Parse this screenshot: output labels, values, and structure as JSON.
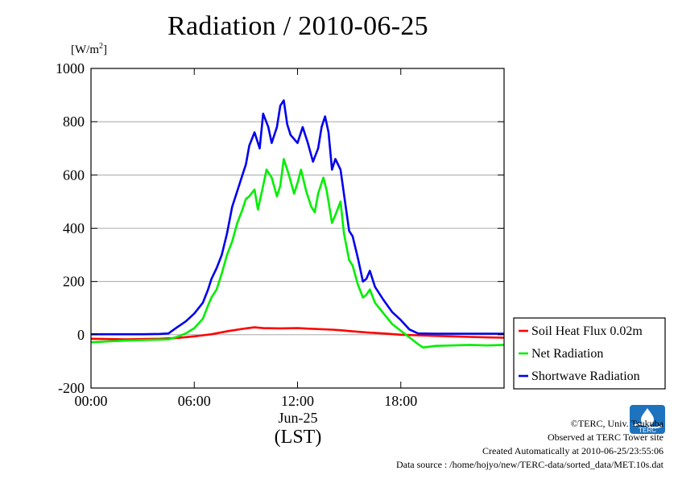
{
  "chart_data": {
    "type": "line",
    "title": "Radiation / 2010-06-25",
    "ylabel_main": "[W/m",
    "ylabel_sup": "2",
    "ylabel_end": "]",
    "ylim": [
      -200,
      1000
    ],
    "yticks": [
      -200,
      0,
      200,
      400,
      600,
      800,
      1000
    ],
    "ytick_labels": [
      "-200",
      "0",
      "200",
      "400",
      "600",
      "800",
      "1000"
    ],
    "xlim": [
      0,
      24
    ],
    "xticks": [
      0,
      6,
      12,
      18
    ],
    "xtick_labels": [
      "00:00",
      "06:00",
      "12:00",
      "18:00"
    ],
    "xlabel_category": "Jun-25",
    "xlabel_unit": "(LST)",
    "grid": true,
    "legend_position": "right-bottom",
    "series": [
      {
        "name": "Soil Heat Flux 0.02m",
        "color": "#ff0000",
        "points": [
          [
            0,
            -15
          ],
          [
            2,
            -17
          ],
          [
            4,
            -15
          ],
          [
            5,
            -12
          ],
          [
            6,
            -6
          ],
          [
            7,
            2
          ],
          [
            8,
            14
          ],
          [
            9,
            24
          ],
          [
            9.5,
            28
          ],
          [
            10,
            25
          ],
          [
            11,
            24
          ],
          [
            12,
            25
          ],
          [
            13,
            22
          ],
          [
            14,
            19
          ],
          [
            14.5,
            17
          ],
          [
            15,
            14
          ],
          [
            16,
            9
          ],
          [
            17,
            5
          ],
          [
            18,
            0
          ],
          [
            19,
            -2
          ],
          [
            20,
            -4
          ],
          [
            21,
            -6
          ],
          [
            22,
            -8
          ],
          [
            23,
            -10
          ],
          [
            24,
            -11
          ]
        ]
      },
      {
        "name": "Net Radiation",
        "color": "#00ee00",
        "points": [
          [
            0,
            -28
          ],
          [
            1,
            -25
          ],
          [
            2,
            -22
          ],
          [
            3,
            -20
          ],
          [
            4,
            -18
          ],
          [
            4.5,
            -17
          ],
          [
            5,
            -8
          ],
          [
            5.5,
            5
          ],
          [
            6,
            25
          ],
          [
            6.5,
            60
          ],
          [
            6.8,
            110
          ],
          [
            7,
            140
          ],
          [
            7.3,
            170
          ],
          [
            7.6,
            230
          ],
          [
            7.9,
            300
          ],
          [
            8.2,
            350
          ],
          [
            8.5,
            420
          ],
          [
            8.8,
            470
          ],
          [
            9,
            510
          ],
          [
            9.2,
            520
          ],
          [
            9.5,
            545
          ],
          [
            9.7,
            470
          ],
          [
            10,
            560
          ],
          [
            10.2,
            620
          ],
          [
            10.5,
            590
          ],
          [
            10.8,
            520
          ],
          [
            11,
            560
          ],
          [
            11.2,
            660
          ],
          [
            11.5,
            600
          ],
          [
            11.8,
            530
          ],
          [
            12,
            570
          ],
          [
            12.2,
            620
          ],
          [
            12.5,
            540
          ],
          [
            12.8,
            480
          ],
          [
            13,
            460
          ],
          [
            13.2,
            530
          ],
          [
            13.5,
            590
          ],
          [
            13.7,
            540
          ],
          [
            14,
            420
          ],
          [
            14.2,
            450
          ],
          [
            14.5,
            500
          ],
          [
            14.7,
            380
          ],
          [
            15,
            280
          ],
          [
            15.2,
            260
          ],
          [
            15.5,
            190
          ],
          [
            15.8,
            140
          ],
          [
            16,
            150
          ],
          [
            16.2,
            170
          ],
          [
            16.5,
            120
          ],
          [
            17,
            80
          ],
          [
            17.5,
            40
          ],
          [
            18,
            15
          ],
          [
            18.5,
            -10
          ],
          [
            19,
            -35
          ],
          [
            19.3,
            -48
          ],
          [
            20,
            -42
          ],
          [
            21,
            -40
          ],
          [
            22,
            -38
          ],
          [
            23,
            -40
          ],
          [
            24,
            -38
          ]
        ]
      },
      {
        "name": "Shortwave Radiation",
        "color": "#0000ee",
        "points": [
          [
            0,
            2
          ],
          [
            1,
            2
          ],
          [
            2,
            2
          ],
          [
            3,
            2
          ],
          [
            4,
            3
          ],
          [
            4.5,
            5
          ],
          [
            5,
            28
          ],
          [
            5.5,
            50
          ],
          [
            6,
            80
          ],
          [
            6.5,
            120
          ],
          [
            6.8,
            170
          ],
          [
            7,
            210
          ],
          [
            7.3,
            250
          ],
          [
            7.6,
            300
          ],
          [
            7.9,
            380
          ],
          [
            8.2,
            480
          ],
          [
            8.5,
            540
          ],
          [
            8.8,
            600
          ],
          [
            9,
            640
          ],
          [
            9.2,
            710
          ],
          [
            9.5,
            760
          ],
          [
            9.8,
            700
          ],
          [
            10,
            830
          ],
          [
            10.3,
            780
          ],
          [
            10.5,
            720
          ],
          [
            10.8,
            780
          ],
          [
            11,
            860
          ],
          [
            11.2,
            880
          ],
          [
            11.4,
            790
          ],
          [
            11.6,
            750
          ],
          [
            12,
            720
          ],
          [
            12.3,
            780
          ],
          [
            12.6,
            720
          ],
          [
            12.9,
            650
          ],
          [
            13.2,
            700
          ],
          [
            13.4,
            780
          ],
          [
            13.6,
            820
          ],
          [
            13.8,
            760
          ],
          [
            14,
            620
          ],
          [
            14.2,
            660
          ],
          [
            14.5,
            620
          ],
          [
            14.8,
            480
          ],
          [
            15,
            390
          ],
          [
            15.2,
            370
          ],
          [
            15.5,
            290
          ],
          [
            15.8,
            200
          ],
          [
            16,
            210
          ],
          [
            16.2,
            240
          ],
          [
            16.5,
            180
          ],
          [
            17,
            130
          ],
          [
            17.5,
            85
          ],
          [
            18,
            55
          ],
          [
            18.5,
            20
          ],
          [
            19,
            5
          ],
          [
            20,
            4
          ],
          [
            21,
            4
          ],
          [
            22,
            4
          ],
          [
            23,
            4
          ],
          [
            24,
            4
          ]
        ]
      }
    ]
  },
  "credits": {
    "copyright": "©TERC, Univ. Tsukuba",
    "site": "Observed at TERC Tower site",
    "created": "Created Automatically at 2010-06-25/23:55:06",
    "source": "Data source : /home/hojyo/new/TERC-data/sorted_data/MET.10s.dat"
  },
  "logo": {
    "text": "TERC"
  }
}
